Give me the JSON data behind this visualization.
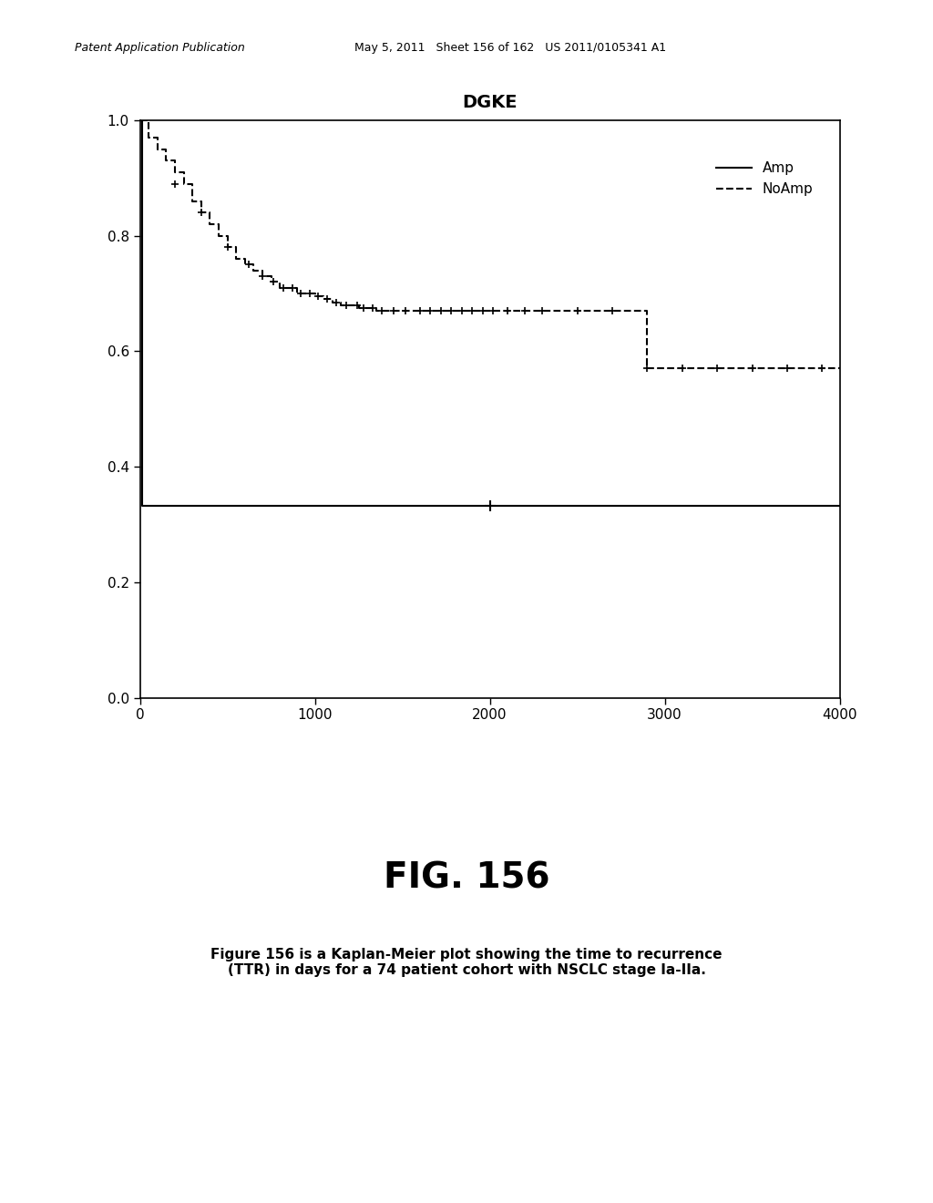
{
  "title": "DGKE",
  "header_left": "Patent Application Publication",
  "header_center": "May 5, 2011   Sheet 156 of 162   US 2011/0105341 A1",
  "fig_label": "FIG. 156",
  "fig_caption": "Figure 156 is a Kaplan-Meier plot showing the time to recurrence\n(TTR) in days for a 74 patient cohort with NSCLC stage Ia-IIa.",
  "xlim": [
    0,
    4000
  ],
  "ylim": [
    0.0,
    1.0
  ],
  "xticks": [
    0,
    1000,
    2000,
    3000,
    4000
  ],
  "yticks": [
    0.0,
    0.2,
    0.4,
    0.6,
    0.8,
    1.0
  ],
  "noamp_times": [
    0,
    50,
    100,
    150,
    200,
    250,
    300,
    350,
    400,
    450,
    500,
    550,
    600,
    650,
    700,
    750,
    800,
    850,
    900,
    950,
    1000,
    1050,
    1100,
    1150,
    1200,
    1250,
    1300,
    1350,
    1400,
    1500,
    1600,
    1700,
    1800,
    1900,
    2000,
    2100,
    2200,
    2300,
    2400,
    2500,
    2600,
    2700,
    2800,
    2900,
    3000,
    3200,
    3400,
    3600,
    3800,
    4000
  ],
  "noamp_survival": [
    1.0,
    0.97,
    0.95,
    0.93,
    0.91,
    0.89,
    0.86,
    0.84,
    0.82,
    0.8,
    0.78,
    0.76,
    0.75,
    0.74,
    0.73,
    0.72,
    0.71,
    0.71,
    0.7,
    0.7,
    0.695,
    0.69,
    0.685,
    0.68,
    0.68,
    0.675,
    0.675,
    0.67,
    0.67,
    0.67,
    0.67,
    0.67,
    0.67,
    0.67,
    0.67,
    0.67,
    0.67,
    0.67,
    0.67,
    0.67,
    0.67,
    0.67,
    0.67,
    0.57,
    0.57,
    0.57,
    0.57,
    0.57,
    0.57,
    0.57
  ],
  "noamp_censors": [
    200,
    350,
    500,
    620,
    700,
    760,
    820,
    870,
    920,
    970,
    1020,
    1070,
    1120,
    1180,
    1240,
    1280,
    1330,
    1380,
    1450,
    1520,
    1600,
    1660,
    1720,
    1780,
    1840,
    1900,
    1960,
    2020,
    2100,
    2200,
    2300,
    2500,
    2700,
    2900,
    3100,
    3300,
    3500,
    3700,
    3900
  ],
  "noamp_censor_y": [
    0.89,
    0.84,
    0.78,
    0.75,
    0.73,
    0.72,
    0.71,
    0.71,
    0.7,
    0.7,
    0.695,
    0.69,
    0.685,
    0.68,
    0.68,
    0.675,
    0.675,
    0.67,
    0.67,
    0.67,
    0.67,
    0.67,
    0.67,
    0.67,
    0.67,
    0.67,
    0.67,
    0.67,
    0.67,
    0.67,
    0.67,
    0.67,
    0.67,
    0.57,
    0.57,
    0.57,
    0.57,
    0.57,
    0.57
  ],
  "amp_times": [
    0,
    10,
    4000
  ],
  "amp_survival": [
    1.0,
    0.333,
    0.333
  ],
  "amp_censor_x": [
    2000
  ],
  "amp_censor_y": [
    0.333
  ],
  "legend_labels": [
    "Amp",
    "NoAmp"
  ],
  "background_color": "#ffffff",
  "line_color": "#000000"
}
